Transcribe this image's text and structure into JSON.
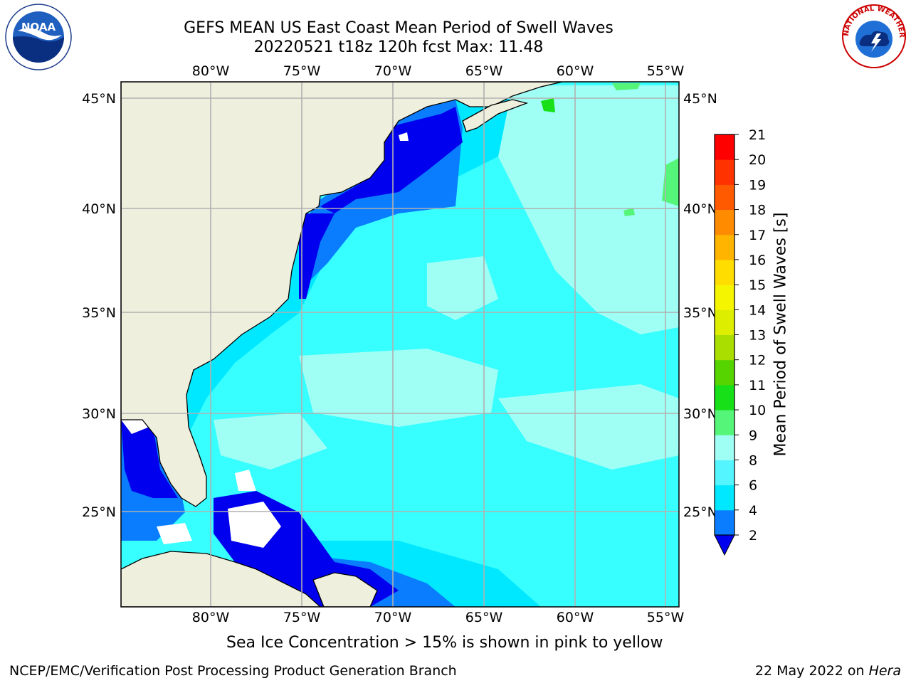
{
  "title": {
    "line1": "GEFS MEAN US East Coast Mean Period of Swell Waves",
    "line2": "20220521 t18z 120h fcst   Max: 11.48"
  },
  "map": {
    "lon_ticks": [
      "80°W",
      "75°W",
      "70°W",
      "65°W",
      "60°W",
      "55°W"
    ],
    "lat_ticks": [
      "45°N",
      "40°N",
      "35°N",
      "30°N",
      "25°N"
    ],
    "land_color": "#efefde",
    "grid_color": "#b0b0b0",
    "ocean_fill": "#38ffff",
    "no_data_color": "#ffffff"
  },
  "colorbar": {
    "label": "Mean Period of Swell Waves [s]",
    "ticks": [
      "2",
      "4",
      "6",
      "8",
      "9",
      "10",
      "11",
      "12",
      "13",
      "14",
      "15",
      "16",
      "17",
      "18",
      "19",
      "20",
      "21"
    ],
    "colors": [
      "#0a7dff",
      "#00e8ff",
      "#55f5ff",
      "#a0fff5",
      "#55f57a",
      "#18e018",
      "#55d400",
      "#aadd00",
      "#ddee00",
      "#f5f500",
      "#ffdd00",
      "#ffb400",
      "#ff8c00",
      "#ff5a00",
      "#ff3200",
      "#ff0000"
    ],
    "underflow_color": "#0000ee"
  },
  "caption": "Sea Ice Concentration > 15% is shown in pink to yellow",
  "footer": {
    "left": "NCEP/EMC/Verification Post Processing Product Generation Branch",
    "right_prefix": "22 May 2022 on ",
    "right_host": "Hera"
  },
  "logos": {
    "noaa": "NOAA",
    "nws_ring": "NATIONAL WEATHER SERVICE"
  }
}
